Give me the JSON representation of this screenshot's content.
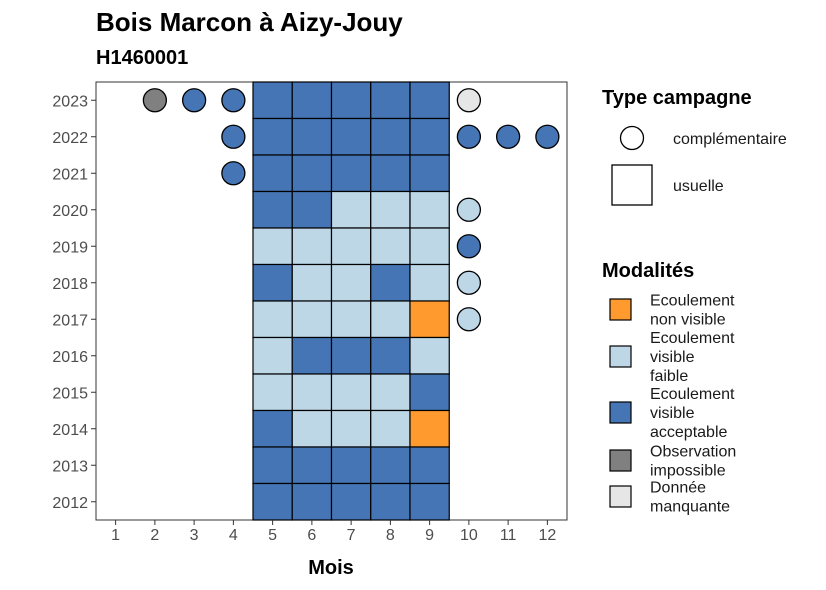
{
  "chart_data": {
    "type": "heatmap",
    "title": "Bois Marcon à Aizy-Jouy",
    "subtitle": "H1460001",
    "xlabel": "Mois",
    "ylabel": "",
    "x_ticks": [
      "1",
      "2",
      "3",
      "4",
      "5",
      "6",
      "7",
      "8",
      "9",
      "10",
      "11",
      "12"
    ],
    "y_ticks": [
      "2012",
      "2013",
      "2014",
      "2015",
      "2016",
      "2017",
      "2018",
      "2019",
      "2020",
      "2021",
      "2022",
      "2023"
    ],
    "xlim": [
      0.5,
      12.5
    ],
    "ylim": [
      2011.5,
      2023.5
    ],
    "grid": false,
    "colors": {
      "Ecoulement non visible": "#FE9A2E",
      "Ecoulement visible faible": "#BDD7E7",
      "Ecoulement visible acceptable": "#4575B4",
      "Observation impossible": "#808080",
      "Donnée manquante": "#E6E6E6"
    },
    "legend_type": {
      "title": "Type campagne",
      "entries": [
        {
          "label": "complémentaire",
          "shape": "circle"
        },
        {
          "label": "usuelle",
          "shape": "square"
        }
      ]
    },
    "legend_modalites": {
      "title": "Modalités",
      "entries": [
        {
          "label": [
            "Ecoulement",
            "non visible"
          ],
          "key": "Ecoulement non visible"
        },
        {
          "label": [
            "Ecoulement",
            "visible",
            "faible"
          ],
          "key": "Ecoulement visible faible"
        },
        {
          "label": [
            "Ecoulement",
            "visible",
            "acceptable"
          ],
          "key": "Ecoulement visible acceptable"
        },
        {
          "label": [
            "Observation",
            "impossible"
          ],
          "key": "Observation impossible"
        },
        {
          "label": [
            "Donnée",
            "manquante"
          ],
          "key": "Donnée manquante"
        }
      ]
    },
    "usuelle": [
      {
        "year": 2023,
        "values": {
          "5": "Ecoulement visible acceptable",
          "6": "Ecoulement visible acceptable",
          "7": "Ecoulement visible acceptable",
          "8": "Ecoulement visible acceptable",
          "9": "Ecoulement visible acceptable"
        }
      },
      {
        "year": 2022,
        "values": {
          "5": "Ecoulement visible acceptable",
          "6": "Ecoulement visible acceptable",
          "7": "Ecoulement visible acceptable",
          "8": "Ecoulement visible acceptable",
          "9": "Ecoulement visible acceptable"
        }
      },
      {
        "year": 2021,
        "values": {
          "5": "Ecoulement visible acceptable",
          "6": "Ecoulement visible acceptable",
          "7": "Ecoulement visible acceptable",
          "8": "Ecoulement visible acceptable",
          "9": "Ecoulement visible acceptable"
        }
      },
      {
        "year": 2020,
        "values": {
          "5": "Ecoulement visible acceptable",
          "6": "Ecoulement visible acceptable",
          "7": "Ecoulement visible faible",
          "8": "Ecoulement visible faible",
          "9": "Ecoulement visible faible"
        }
      },
      {
        "year": 2019,
        "values": {
          "5": "Ecoulement visible faible",
          "6": "Ecoulement visible faible",
          "7": "Ecoulement visible faible",
          "8": "Ecoulement visible faible",
          "9": "Ecoulement visible faible"
        }
      },
      {
        "year": 2018,
        "values": {
          "5": "Ecoulement visible acceptable",
          "6": "Ecoulement visible faible",
          "7": "Ecoulement visible faible",
          "8": "Ecoulement visible acceptable",
          "9": "Ecoulement visible faible"
        }
      },
      {
        "year": 2017,
        "values": {
          "5": "Ecoulement visible faible",
          "6": "Ecoulement visible faible",
          "7": "Ecoulement visible faible",
          "8": "Ecoulement visible faible",
          "9": "Ecoulement non visible"
        }
      },
      {
        "year": 2016,
        "values": {
          "5": "Ecoulement visible faible",
          "6": "Ecoulement visible acceptable",
          "7": "Ecoulement visible acceptable",
          "8": "Ecoulement visible acceptable",
          "9": "Ecoulement visible faible"
        }
      },
      {
        "year": 2015,
        "values": {
          "5": "Ecoulement visible faible",
          "6": "Ecoulement visible faible",
          "7": "Ecoulement visible faible",
          "8": "Ecoulement visible faible",
          "9": "Ecoulement visible acceptable"
        }
      },
      {
        "year": 2014,
        "values": {
          "5": "Ecoulement visible acceptable",
          "6": "Ecoulement visible faible",
          "7": "Ecoulement visible faible",
          "8": "Ecoulement visible faible",
          "9": "Ecoulement non visible"
        }
      },
      {
        "year": 2013,
        "values": {
          "5": "Ecoulement visible acceptable",
          "6": "Ecoulement visible acceptable",
          "7": "Ecoulement visible acceptable",
          "8": "Ecoulement visible acceptable",
          "9": "Ecoulement visible acceptable"
        }
      },
      {
        "year": 2012,
        "values": {
          "5": "Ecoulement visible acceptable",
          "6": "Ecoulement visible acceptable",
          "7": "Ecoulement visible acceptable",
          "8": "Ecoulement visible acceptable",
          "9": "Ecoulement visible acceptable"
        }
      }
    ],
    "complementaire": [
      {
        "year": 2023,
        "month": 2,
        "value": "Observation impossible"
      },
      {
        "year": 2023,
        "month": 3,
        "value": "Ecoulement visible acceptable"
      },
      {
        "year": 2023,
        "month": 4,
        "value": "Ecoulement visible acceptable"
      },
      {
        "year": 2023,
        "month": 10,
        "value": "Donnée manquante"
      },
      {
        "year": 2022,
        "month": 4,
        "value": "Ecoulement visible acceptable"
      },
      {
        "year": 2022,
        "month": 10,
        "value": "Ecoulement visible acceptable"
      },
      {
        "year": 2022,
        "month": 11,
        "value": "Ecoulement visible acceptable"
      },
      {
        "year": 2022,
        "month": 12,
        "value": "Ecoulement visible acceptable"
      },
      {
        "year": 2021,
        "month": 4,
        "value": "Ecoulement visible acceptable"
      },
      {
        "year": 2020,
        "month": 10,
        "value": "Ecoulement visible faible"
      },
      {
        "year": 2019,
        "month": 10,
        "value": "Ecoulement visible acceptable"
      },
      {
        "year": 2018,
        "month": 10,
        "value": "Ecoulement visible faible"
      },
      {
        "year": 2017,
        "month": 10,
        "value": "Ecoulement visible faible"
      }
    ]
  }
}
